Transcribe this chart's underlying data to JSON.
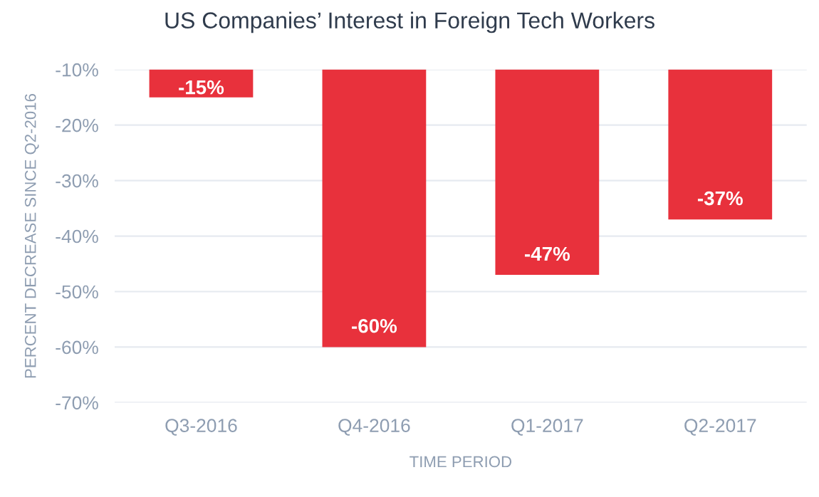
{
  "chart_data": {
    "type": "bar",
    "title": "US Companies’ Interest in Foreign Tech Workers",
    "xlabel": "TIME PERIOD",
    "ylabel": "PERCENT DECREASE SINCE Q2-2016",
    "categories": [
      "Q3-2016",
      "Q4-2016",
      "Q1-2017",
      "Q2-2017"
    ],
    "values": [
      -15,
      -60,
      -47,
      -37
    ],
    "color": "#e8313c",
    "ylim": [
      -70,
      -10
    ],
    "yticks": [
      {
        "value": -10,
        "label": "-10%"
      },
      {
        "value": -20,
        "label": "-20%"
      },
      {
        "value": -30,
        "label": "-30%"
      },
      {
        "value": -40,
        "label": "-40%"
      },
      {
        "value": -50,
        "label": "-50%"
      },
      {
        "value": -60,
        "label": "-60%"
      },
      {
        "value": -70,
        "label": "-70%"
      }
    ],
    "value_labels": [
      "-15%",
      "-60%",
      "-47%",
      "-37%"
    ],
    "grid": "y",
    "legend": false
  }
}
